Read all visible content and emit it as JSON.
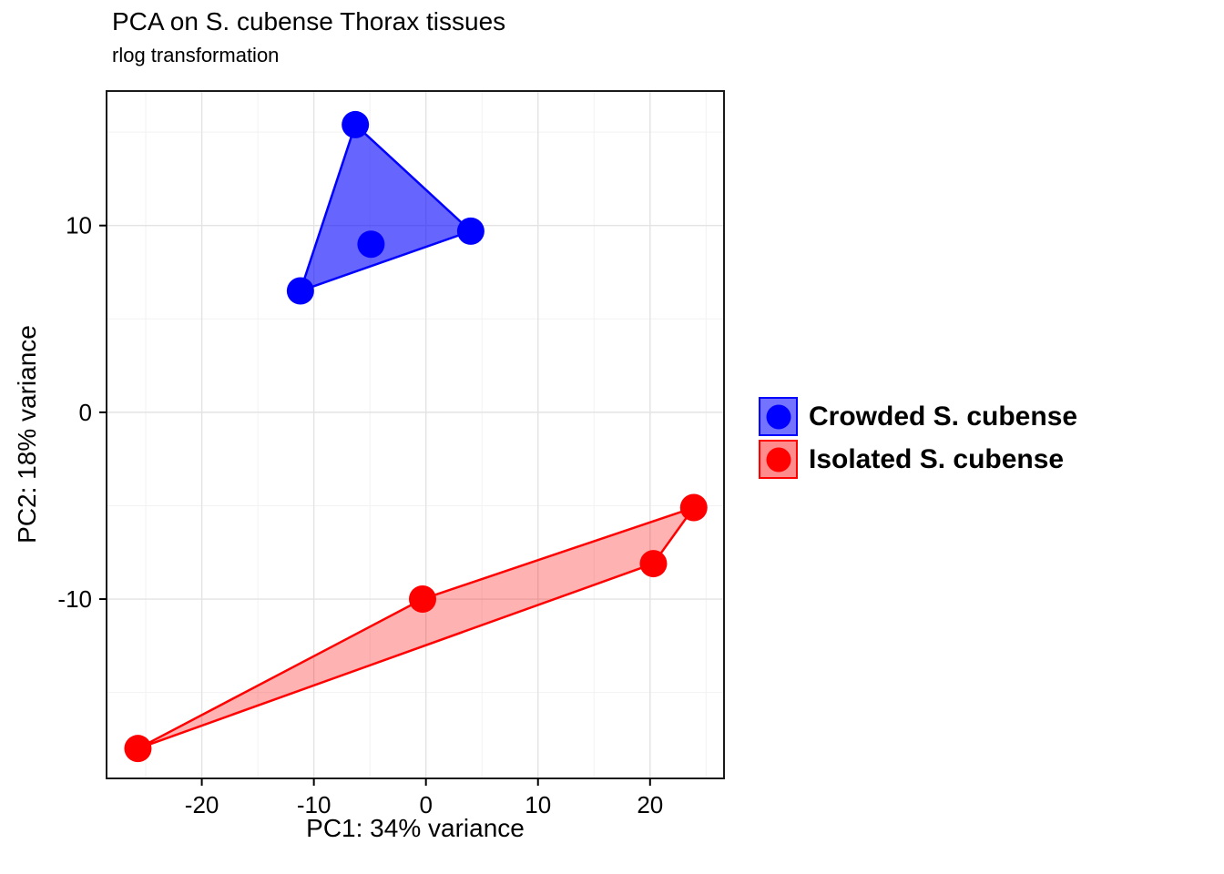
{
  "title": "PCA on S. cubense Thorax tissues",
  "subtitle": "rlog transformation",
  "chart_data": {
    "type": "scatter",
    "title": "PCA on S. cubense Thorax tissues",
    "subtitle": "rlog transformation",
    "xlabel": "PC1: 34% variance",
    "ylabel": "PC2: 18% variance",
    "xlim": [
      -28.5,
      26.6
    ],
    "ylim": [
      -19.6,
      17.2
    ],
    "x_ticks": [
      -20,
      -10,
      0,
      10,
      20
    ],
    "y_ticks": [
      -10,
      0,
      10
    ],
    "x_minor_ticks": [
      -25,
      -15,
      -5,
      5,
      15,
      25
    ],
    "y_minor_ticks": [
      -15,
      -5,
      5,
      15
    ],
    "grid": true,
    "legend_position": "right",
    "panel_border_color": "#1a1a1a",
    "major_grid_color": "#e3e3e3",
    "minor_grid_color": "#f2f2f2",
    "axis_text_color": "#000000",
    "series": [
      {
        "name": "Crowded S. cubense",
        "color": "#0000ff",
        "fill_alpha": 0.6,
        "key_alpha": 0.55,
        "points": [
          [
            -6.3,
            15.4
          ],
          [
            4.0,
            9.7
          ],
          [
            -11.2,
            6.5
          ],
          [
            -4.9,
            9.0
          ]
        ],
        "hull": [
          [
            -6.3,
            15.4
          ],
          [
            4.0,
            9.7
          ],
          [
            -11.2,
            6.5
          ]
        ]
      },
      {
        "name": "Isolated S. cubense",
        "color": "#ff0000",
        "fill_alpha": 0.3,
        "key_alpha": 0.45,
        "points": [
          [
            23.9,
            -5.1
          ],
          [
            20.3,
            -8.1
          ],
          [
            -0.3,
            -10.0
          ],
          [
            -25.7,
            -18.0
          ]
        ],
        "hull": [
          [
            -25.7,
            -18.0
          ],
          [
            20.3,
            -8.1
          ],
          [
            23.9,
            -5.1
          ],
          [
            -0.3,
            -10.0
          ]
        ]
      }
    ]
  }
}
